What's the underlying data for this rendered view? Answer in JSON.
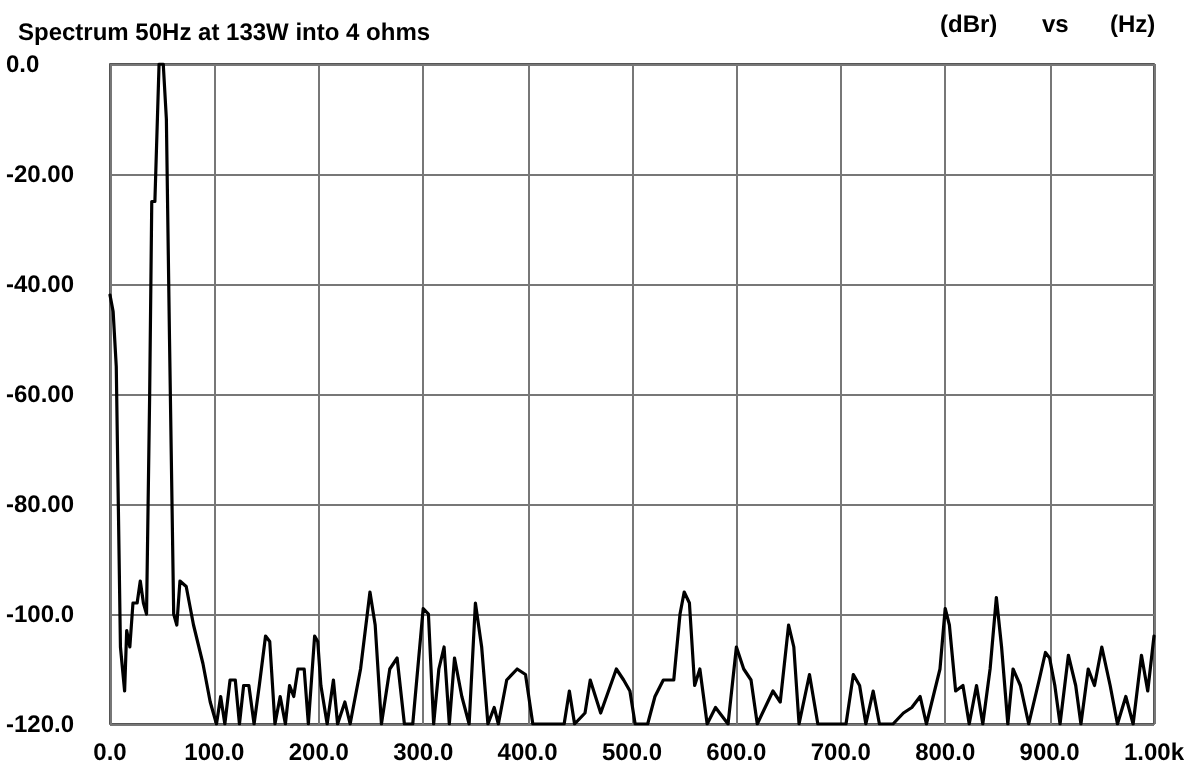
{
  "chart_data": {
    "type": "line",
    "title": "Spectrum 50Hz at 133W into 4 ohms",
    "xlabel": "(Hz)",
    "ylabel": "(dBr)",
    "annotations": [
      "vs"
    ],
    "x": [
      0,
      3,
      6,
      10,
      14,
      16,
      19,
      22,
      26,
      29,
      32,
      35,
      38,
      40,
      43,
      47,
      51,
      54,
      57,
      61,
      64,
      67,
      73,
      80,
      89,
      96,
      102,
      106,
      110,
      115,
      120,
      124,
      128,
      133,
      138,
      143,
      149,
      153,
      158,
      163,
      168,
      172,
      176,
      180,
      186,
      190,
      196,
      199,
      202,
      208,
      214,
      218,
      225,
      230,
      240,
      249,
      254,
      260,
      268,
      275,
      282,
      290,
      300,
      305,
      310,
      315,
      320,
      325,
      330,
      337,
      344,
      350,
      356,
      362,
      368,
      372,
      380,
      390,
      398,
      405,
      412,
      420,
      435,
      440,
      445,
      455,
      460,
      465,
      470,
      485,
      492,
      498,
      503,
      515,
      522,
      530,
      540,
      546,
      550,
      555,
      560,
      565,
      572,
      580,
      592,
      600,
      607,
      614,
      620,
      630,
      635,
      642,
      650,
      655,
      660,
      670,
      678,
      690,
      705,
      712,
      718,
      724,
      731,
      737,
      750,
      760,
      768,
      776,
      782,
      795,
      800,
      804,
      810,
      817,
      823,
      830,
      836,
      843,
      849,
      854,
      860,
      865,
      872,
      880,
      890,
      896,
      900,
      905,
      910,
      918,
      925,
      930,
      937,
      943,
      950,
      958,
      965,
      973,
      980,
      988,
      994,
      1000
    ],
    "series": [
      {
        "color": "#000000",
        "values": [
          -42,
          -45,
          -55,
          -106,
          -114,
          -103,
          -106,
          -98,
          -98,
          -94,
          -98,
          -100,
          -60,
          -25,
          -25,
          0,
          0,
          -10,
          -50,
          -100,
          -102,
          -94,
          -95,
          -102,
          -109,
          -116,
          -120,
          -115,
          -120,
          -112,
          -112,
          -120,
          -113,
          -113,
          -120,
          -113,
          -104,
          -105,
          -120,
          -115,
          -120,
          -113,
          -115,
          -110,
          -110,
          -120,
          -104,
          -105,
          -113,
          -120,
          -112,
          -120,
          -116,
          -120,
          -110,
          -96,
          -102,
          -120,
          -110,
          -108,
          -120,
          -120,
          -99,
          -100,
          -120,
          -110,
          -106,
          -120,
          -108,
          -115,
          -120,
          -98,
          -106,
          -120,
          -117,
          -120,
          -112,
          -110,
          -111,
          -120,
          -120,
          -120,
          -120,
          -114,
          -120,
          -118,
          -112,
          -115,
          -118,
          -110,
          -112,
          -114,
          -120,
          -120,
          -115,
          -112,
          -112,
          -100,
          -96,
          -98,
          -113,
          -110,
          -120,
          -117,
          -120,
          -106,
          -110,
          -112,
          -120,
          -116,
          -114,
          -116,
          -102,
          -106,
          -120,
          -111,
          -120,
          -120,
          -120,
          -111,
          -113,
          -120,
          -114,
          -120,
          -120,
          -118,
          -117,
          -115,
          -120,
          -110,
          -99,
          -102,
          -114,
          -113,
          -120,
          -113,
          -120,
          -110,
          -97,
          -106,
          -120,
          -110,
          -113,
          -120,
          -112,
          -107,
          -108,
          -113,
          -120,
          -107.5,
          -113,
          -120,
          -110,
          -113,
          -106,
          -113,
          -120,
          -115,
          -120,
          -107.5,
          -114,
          -104
        ]
      }
    ],
    "xlim": [
      0,
      1000
    ],
    "xticks": [
      {
        "value": 0,
        "label": "0.0"
      },
      {
        "value": 100,
        "label": "100.0"
      },
      {
        "value": 200,
        "label": "200.0"
      },
      {
        "value": 300,
        "label": "300.0"
      },
      {
        "value": 400,
        "label": "400.0"
      },
      {
        "value": 500,
        "label": "500.0"
      },
      {
        "value": 600,
        "label": "600.0"
      },
      {
        "value": 700,
        "label": "700.0"
      },
      {
        "value": 800,
        "label": "800.0"
      },
      {
        "value": 900,
        "label": "900.0"
      },
      {
        "value": 1000,
        "label": "1.00k"
      }
    ],
    "ylim": [
      -120,
      0
    ],
    "yticks": [
      {
        "value": -120,
        "label": "-120.0"
      },
      {
        "value": -100,
        "label": "-100.0"
      },
      {
        "value": -80,
        "label": "-80.00"
      },
      {
        "value": -60,
        "label": "-60.00"
      },
      {
        "value": -40,
        "label": "-40.00"
      },
      {
        "value": -20,
        "label": "-20.00"
      },
      {
        "value": 0,
        "label": "0.0"
      }
    ],
    "grid": true,
    "marker": "none",
    "line_style": "solid"
  }
}
